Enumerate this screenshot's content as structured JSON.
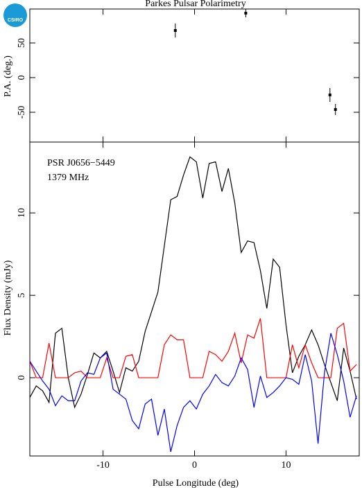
{
  "logo": "CSIRO",
  "chart_data": [
    {
      "type": "scatter",
      "title": "Parkes Pulsar Polarimetry",
      "ylabel": "P.A. (deg.)",
      "x": [
        -2.1,
        5.6,
        14.8,
        15.4
      ],
      "values": [
        68,
        93,
        -25,
        -46
      ],
      "errors": [
        10,
        6,
        10,
        8
      ],
      "color": "#000000",
      "xlim": [
        -18,
        18
      ],
      "xticks": [
        -10,
        0,
        10
      ],
      "ylim": [
        -93,
        99
      ],
      "yticks": [
        -50,
        0,
        50
      ]
    },
    {
      "type": "line",
      "annotations": [
        "PSR J0656−5449",
        "1379 MHz"
      ],
      "xlabel": "Pulse Longitude (deg)",
      "ylabel": "Flux Density (mJy)",
      "x": [
        -18,
        -17.3,
        -16.6,
        -15.9,
        -15.2,
        -14.5,
        -13.8,
        -13.1,
        -12.4,
        -11.7,
        -11.0,
        -10.3,
        -9.6,
        -8.9,
        -8.2,
        -7.5,
        -6.8,
        -6.1,
        -5.4,
        -4.7,
        -4.0,
        -3.3,
        -2.6,
        -1.9,
        -1.2,
        -0.5,
        0.2,
        0.9,
        1.6,
        2.3,
        3.0,
        3.7,
        4.4,
        5.1,
        5.8,
        6.5,
        7.2,
        7.9,
        8.6,
        9.3,
        10.0,
        10.7,
        11.4,
        12.1,
        12.8,
        13.5,
        14.2,
        14.9,
        15.6,
        16.3,
        17.0,
        17.7
      ],
      "series": [
        {
          "color": "#000000",
          "values": [
            -1.2,
            -0.5,
            -0.8,
            -1.5,
            2.7,
            3.0,
            0.0,
            -1.8,
            -1.0,
            0.2,
            1.5,
            1.2,
            1.6,
            0.4,
            -0.9,
            0.6,
            0.4,
            1.0,
            2.8,
            4.0,
            5.2,
            8.0,
            10.8,
            11.0,
            12.3,
            13.4,
            13.1,
            10.9,
            13.0,
            13.1,
            11.3,
            12.7,
            10.6,
            7.6,
            8.3,
            8.2,
            6.5,
            4.2,
            7.2,
            6.7,
            3.2,
            0.3,
            1.3,
            2.0,
            2.9,
            2.0,
            0.8,
            -0.3,
            -1.4,
            1.8,
            0.4,
            -1.3
          ]
        },
        {
          "color": "#ff0000",
          "values": [
            1.0,
            0,
            0,
            2.1,
            0,
            0,
            0,
            0.3,
            0.4,
            0,
            0,
            0,
            1.2,
            0,
            0,
            1.3,
            1.4,
            0,
            0,
            0,
            0,
            2.0,
            2.6,
            2.3,
            2.3,
            0,
            0,
            0,
            1.6,
            1.4,
            1.0,
            1.6,
            2.7,
            0.9,
            2.6,
            2.4,
            3.6,
            0,
            0,
            0,
            0,
            2.0,
            0.6,
            2.0,
            0.9,
            0,
            0,
            0,
            3.0,
            3.3,
            0.4,
            0.8
          ]
        },
        {
          "color": "#0000ff",
          "values": [
            1.0,
            0.4,
            -0.2,
            -0.7,
            -1.7,
            -1.1,
            -1.4,
            -1.4,
            -0.2,
            0.3,
            0.2,
            1.2,
            1.5,
            -0.7,
            -1.0,
            -1.3,
            -2.6,
            -3.1,
            -1.6,
            -1.3,
            -3.5,
            -1.9,
            -4.5,
            -2.9,
            -1.8,
            -1.4,
            -1.9,
            -1.0,
            -0.5,
            0.2,
            -0.3,
            -0.5,
            0.1,
            1.2,
            0.5,
            -1.8,
            0.1,
            -1.2,
            -0.9,
            -0.5,
            0.0,
            -0.1,
            -0.4,
            1.4,
            -0.2,
            -4.0,
            0.3,
            2.7,
            1.4,
            -0.2,
            -2.4,
            -1.1
          ]
        }
      ],
      "xlim": [
        -18,
        18
      ],
      "xticks": [
        -10,
        0,
        10
      ],
      "ylim": [
        -4.75,
        14.3
      ],
      "yticks": [
        0,
        5,
        10
      ]
    }
  ]
}
